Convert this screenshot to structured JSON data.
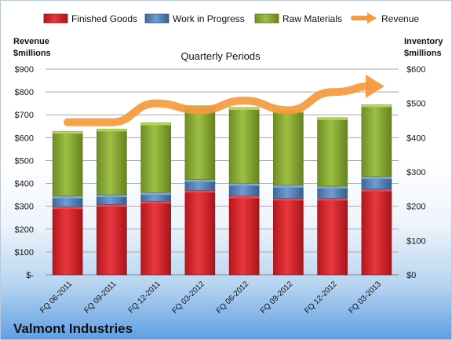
{
  "chart_data": {
    "type": "bar",
    "stacked": true,
    "title": "",
    "subtitle": "Quarterly Periods",
    "company": "Valmont Industries",
    "categories": [
      "FQ 06-2011",
      "FQ 09-2011",
      "FQ 12-2011",
      "FQ 03-2012",
      "FQ 06-2012",
      "FQ 09-2012",
      "FQ 12-2012",
      "FQ 03-2013"
    ],
    "series": [
      {
        "name": "Finished Goods",
        "color": "#d8252b",
        "axis": "left",
        "values": [
          298,
          308,
          322,
          370,
          345,
          335,
          335,
          375
        ]
      },
      {
        "name": "Work in Progress",
        "color": "#4f81bd",
        "axis": "left",
        "values": [
          47,
          42,
          38,
          47,
          55,
          57,
          53,
          55
        ]
      },
      {
        "name": "Raw Materials",
        "color": "#8db036",
        "axis": "left",
        "values": [
          283,
          288,
          305,
          323,
          332,
          328,
          300,
          314
        ]
      },
      {
        "name": "Revenue",
        "color": "#f59a3d",
        "type": "line",
        "axis": "right",
        "values": [
          445,
          445,
          500,
          480,
          508,
          480,
          533,
          550
        ]
      }
    ],
    "left_axis": {
      "title_line1": "Revenue",
      "title_line2": "$millions",
      "ylim": [
        0,
        900
      ],
      "ticks": [
        "$-",
        "$100",
        "$200",
        "$300",
        "$400",
        "$500",
        "$600",
        "$700",
        "$800",
        "$900"
      ]
    },
    "right_axis": {
      "title_line1": "Inventory",
      "title_line2": "$millions",
      "ylim": [
        0,
        600
      ],
      "ticks": [
        "$0",
        "$100",
        "$200",
        "$300",
        "$400",
        "$500",
        "$600"
      ]
    },
    "grid": true,
    "legend_position": "top"
  }
}
